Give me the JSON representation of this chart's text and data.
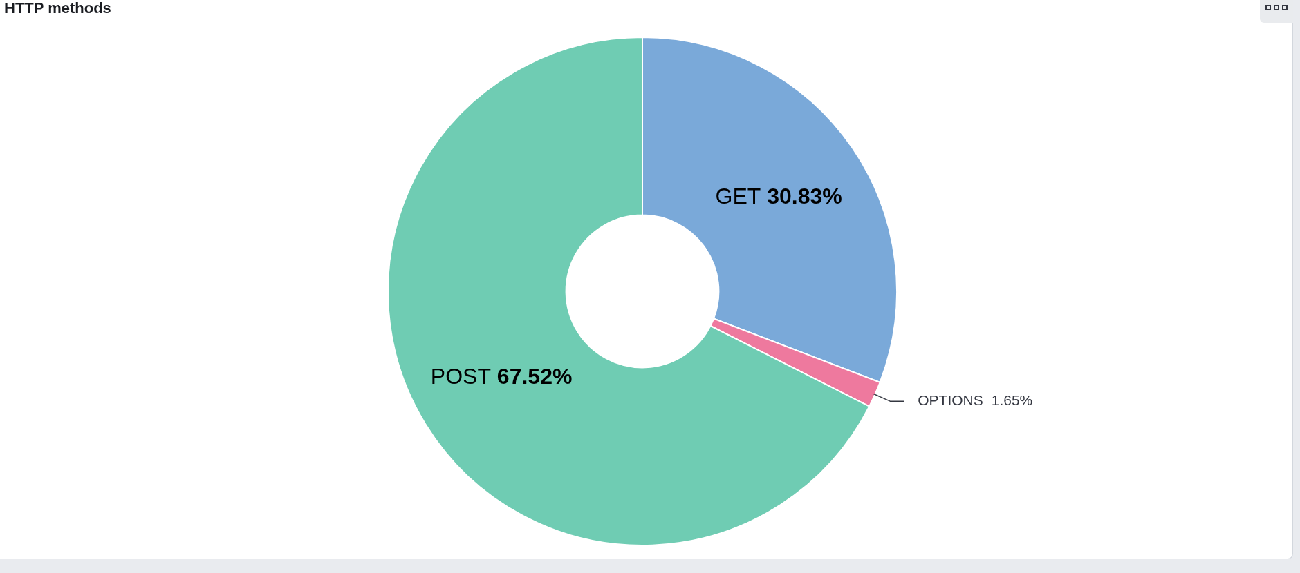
{
  "chart_data": {
    "type": "donut",
    "title": "HTTP methods",
    "categories": [
      "GET",
      "OPTIONS",
      "POST"
    ],
    "values": [
      30.83,
      1.65,
      67.52
    ],
    "colors": [
      "#7aa9d9",
      "#ee799e",
      "#6fccb3"
    ],
    "value_labels": [
      "30.83%",
      "1.65%",
      "67.52%"
    ]
  }
}
